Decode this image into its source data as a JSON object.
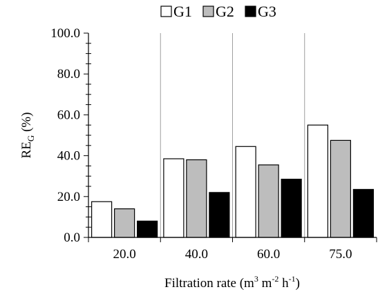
{
  "chart_data": {
    "type": "bar",
    "categories": [
      "20.0",
      "40.0",
      "60.0",
      "75.0"
    ],
    "series": [
      {
        "name": "G1",
        "values": [
          17.5,
          38.5,
          44.5,
          55.0
        ],
        "color": "#ffffff"
      },
      {
        "name": "G2",
        "values": [
          14.0,
          38.0,
          35.5,
          47.5
        ],
        "color": "#bdbdbd"
      },
      {
        "name": "G3",
        "values": [
          8.0,
          22.0,
          28.5,
          23.5
        ],
        "color": "#000000"
      }
    ],
    "ylim": [
      0,
      100
    ],
    "yticks": [
      "0.0",
      "20.0",
      "40.0",
      "60.0",
      "80.0",
      "100.0"
    ],
    "ylabel": {
      "main": "RE",
      "sub": "G",
      "tail": " (%)"
    },
    "xlabel": {
      "prefix": "Filtration  rate (m",
      "sup1": "3",
      "mid": " m",
      "sup2": "-2",
      "mid2": " h",
      "sup3": "-1",
      "suffix": ")"
    },
    "legend_position": "top-center",
    "grid": false
  }
}
